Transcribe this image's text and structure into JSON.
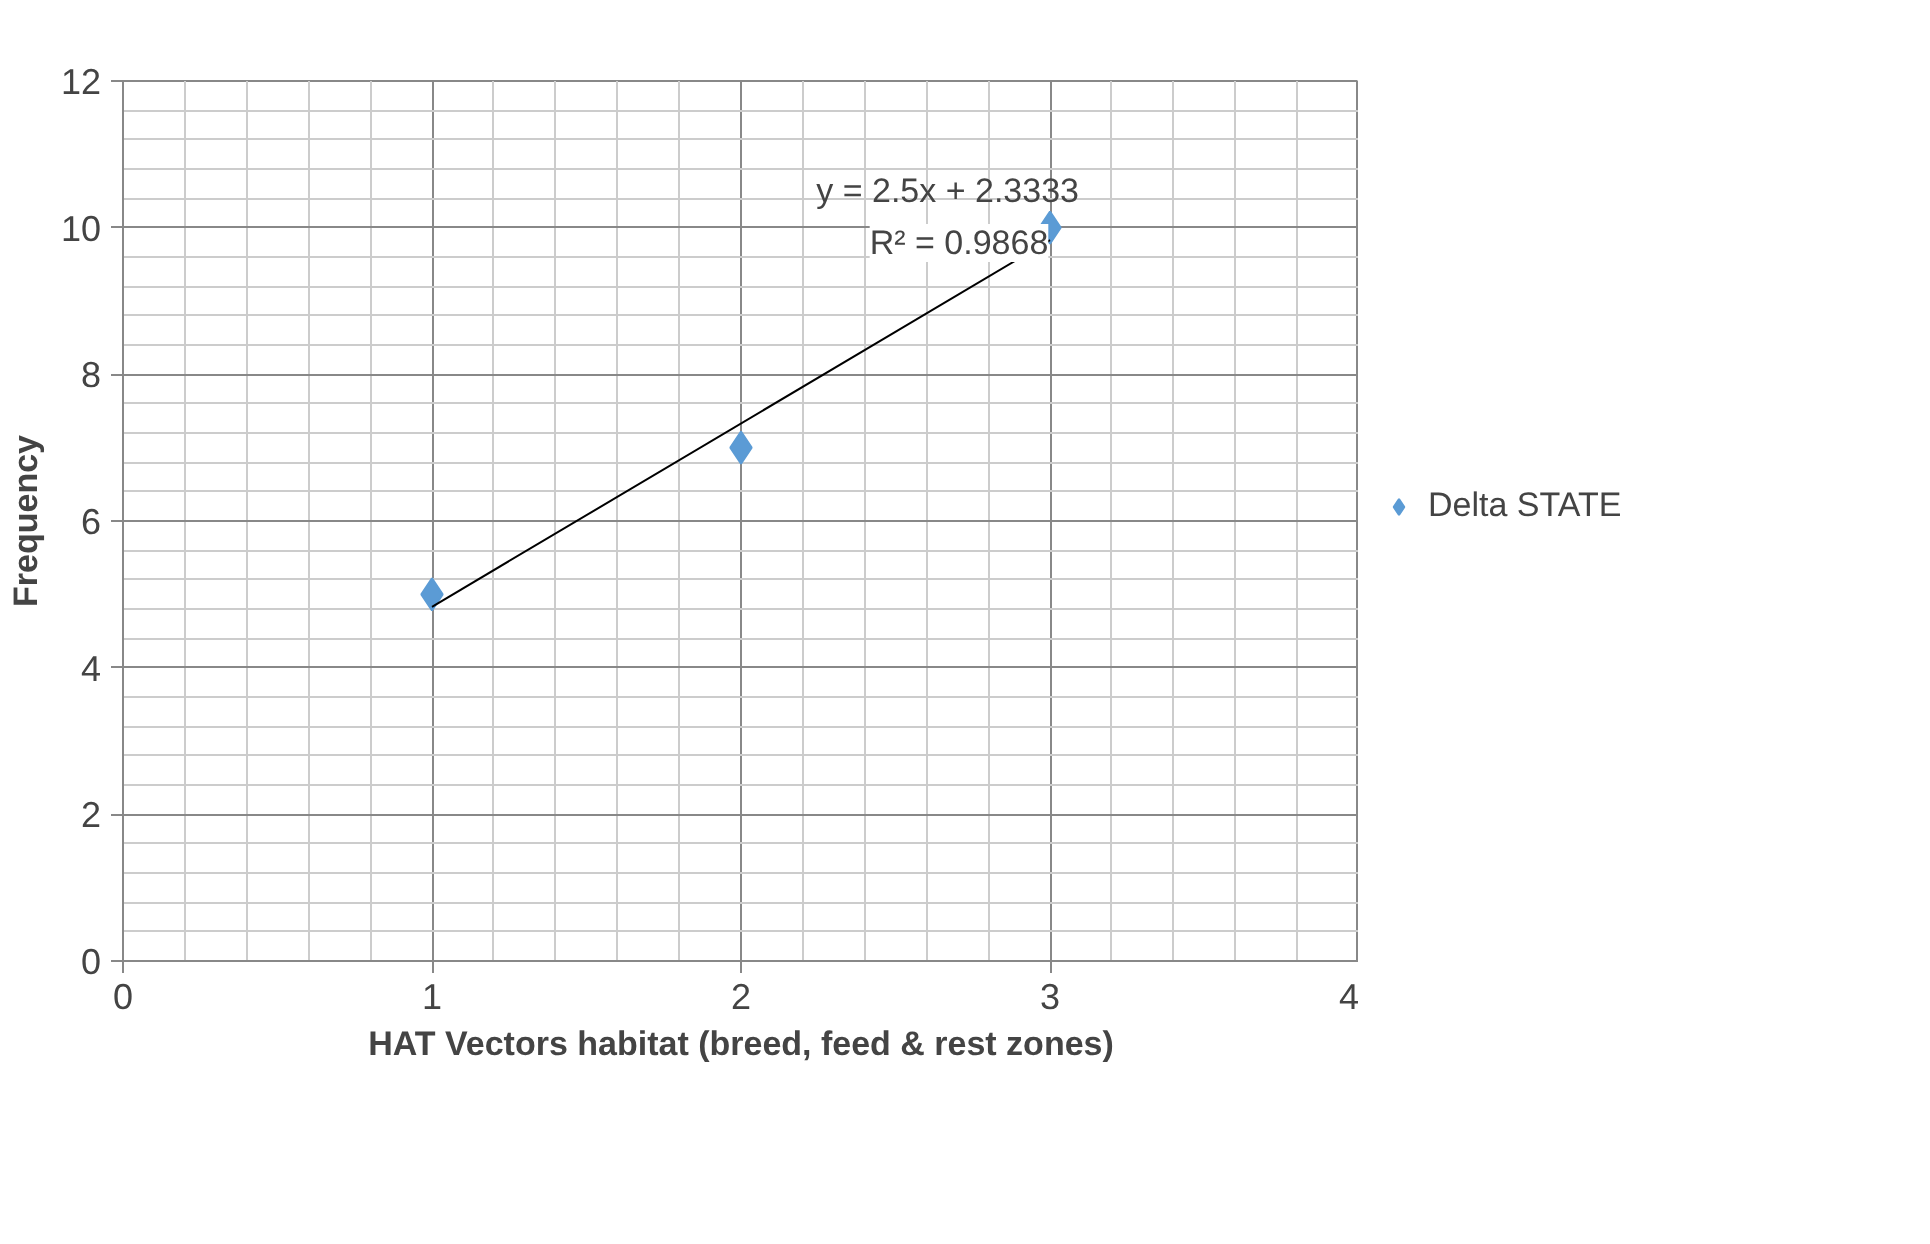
{
  "chart_data": {
    "type": "scatter",
    "xlabel": "HAT Vectors habitat (breed, feed & rest zones)",
    "ylabel": "Frequency",
    "x": [
      1,
      2,
      3
    ],
    "series": [
      {
        "name": "Delta STATE",
        "color": "#5b9bd5",
        "values": [
          5,
          7,
          10
        ]
      },
      {
        "type": "line",
        "color": "#000000",
        "marker": "none",
        "x": [
          1,
          3
        ],
        "values": [
          4.83,
          9.83
        ]
      }
    ],
    "annotations": [
      "y = 2.5x + 2.3333",
      "R² = 0.9868"
    ],
    "xlim": [
      0,
      4
    ],
    "ylim": [
      0,
      12
    ],
    "xticks": [
      0,
      1,
      2,
      3,
      4
    ],
    "yticks": [
      0,
      2,
      4,
      6,
      8,
      10,
      12
    ],
    "grid": true,
    "legend": "right",
    "marker": "diamond"
  }
}
